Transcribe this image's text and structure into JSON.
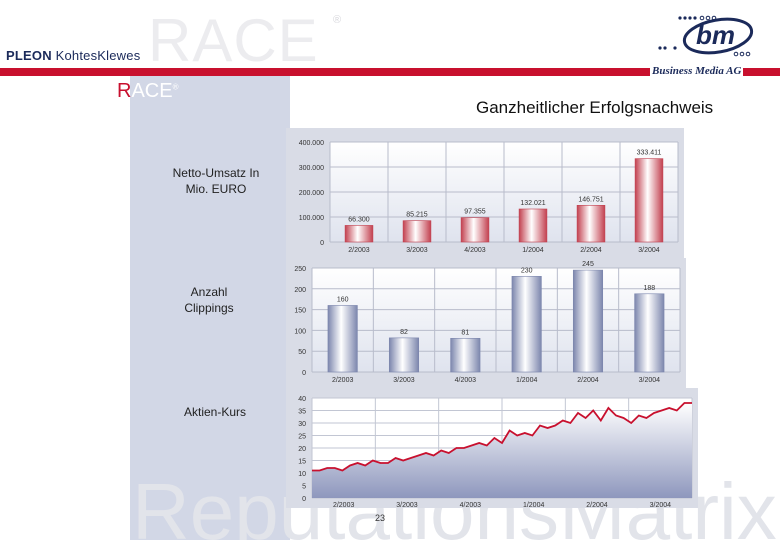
{
  "header": {
    "watermark_race": "RACE",
    "watermark_reg": "®",
    "pleon_brand": "PLEON",
    "pleon_partner": "KohtesKlewes",
    "race_logo": "ACE",
    "race_logo_r": "R",
    "race_reg": "®",
    "bm_caption": "Business Media AG",
    "brand_color": "#c8102e"
  },
  "page_title": "Ganzheitlicher Erfolgsnachweis",
  "labels": {
    "umsatz": "Netto-Umsatz In Mio. EURO",
    "clippings_line1": "Anzahl",
    "clippings_line2": "Clippings",
    "kurs": "Aktien-Kurs"
  },
  "watermark_bottom": "ReputationsMatrix",
  "page_number": "23",
  "chart_data": [
    {
      "type": "bar",
      "categories": [
        "2/2003",
        "3/2003",
        "4/2003",
        "1/2004",
        "2/2004",
        "3/2004"
      ],
      "values": [
        66300,
        85215,
        97355,
        132021,
        146751,
        333411
      ],
      "value_labels": [
        "66.300",
        "85.215",
        "97.355",
        "132.021",
        "146.751",
        "333.411"
      ],
      "ylim": [
        0,
        400000
      ],
      "yticks": [
        "0",
        "100.000",
        "200.000",
        "300.000",
        "400.000"
      ],
      "bar_color": "#d04a5a",
      "grid": true
    },
    {
      "type": "bar",
      "categories": [
        "2/2003",
        "3/2003",
        "4/2003",
        "1/2004",
        "2/2004",
        "3/2004"
      ],
      "values": [
        160,
        82,
        81,
        230,
        245,
        188
      ],
      "value_labels": [
        "160",
        "82",
        "81",
        "230",
        "245",
        "188"
      ],
      "ylim": [
        0,
        250
      ],
      "yticks": [
        "0",
        "50",
        "100",
        "150",
        "200",
        "250"
      ],
      "bar_color": "#9aa3c4",
      "grid": true
    },
    {
      "type": "area",
      "categories": [
        "2/2003",
        "3/2003",
        "4/2003",
        "1/2004",
        "2/2004",
        "3/2004"
      ],
      "x": [
        0,
        0.1,
        0.2,
        0.3,
        0.4,
        0.5,
        0.6,
        0.7,
        0.8,
        0.9,
        1.0,
        1.1,
        1.2,
        1.3,
        1.4,
        1.5,
        1.6,
        1.7,
        1.8,
        1.9,
        2.0,
        2.1,
        2.2,
        2.3,
        2.4,
        2.5,
        2.6,
        2.7,
        2.8,
        2.9,
        3.0,
        3.1,
        3.2,
        3.3,
        3.4,
        3.5,
        3.6,
        3.7,
        3.8,
        3.9,
        4.0,
        4.1,
        4.2,
        4.3,
        4.4,
        4.5,
        4.6,
        4.7,
        4.8,
        4.9,
        5.0
      ],
      "values": [
        11,
        11,
        12,
        12,
        11,
        13,
        14,
        13,
        15,
        14,
        14,
        16,
        15,
        16,
        17,
        18,
        17,
        19,
        18,
        20,
        20,
        21,
        22,
        21,
        24,
        22,
        27,
        25,
        26,
        25,
        29,
        28,
        29,
        31,
        30,
        34,
        32,
        35,
        31,
        36,
        33,
        32,
        30,
        33,
        32,
        34,
        35,
        36,
        35,
        38,
        38
      ],
      "ylim": [
        0,
        40
      ],
      "yticks": [
        "0",
        "5",
        "10",
        "15",
        "20",
        "25",
        "30",
        "35",
        "40"
      ],
      "line_color": "#c8102e",
      "grid": true
    }
  ]
}
